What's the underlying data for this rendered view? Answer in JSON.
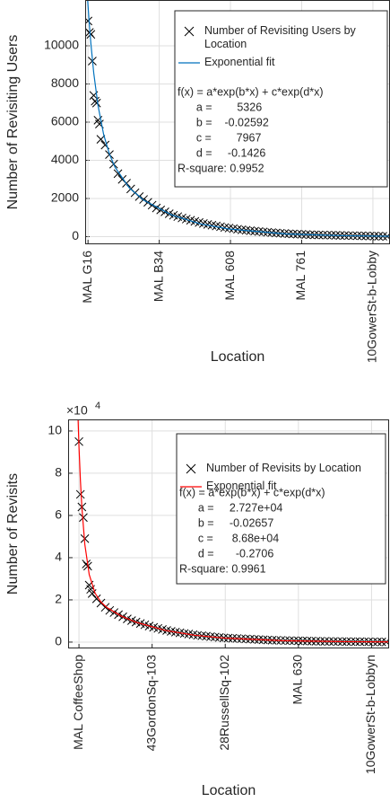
{
  "chart_data": [
    {
      "type": "scatter",
      "y_label": "Number of Revisiting Users",
      "x_label": "Location",
      "grid": true,
      "xlim": [
        -1,
        213
      ],
      "ylim": [
        -400,
        12400
      ],
      "xticks": [
        {
          "value": 1,
          "label": "MAL G16"
        },
        {
          "value": 51,
          "label": "MAL B34"
        },
        {
          "value": 101,
          "label": "MAL 608"
        },
        {
          "value": 151,
          "label": "MAL 761"
        },
        {
          "value": 201,
          "label": "10GowerSt-b-Lobby"
        }
      ],
      "yticks": [
        0,
        2000,
        4000,
        6000,
        8000,
        10000
      ],
      "series": [
        {
          "name": "Number of Revisiting Users by\nLocation",
          "style": "marker",
          "color": "#000000",
          "x": [
            1,
            2,
            3,
            4,
            5,
            6,
            7,
            8,
            9,
            10,
            13,
            16,
            19,
            22,
            25,
            28,
            31,
            34,
            37,
            40,
            43,
            46,
            49,
            52,
            55,
            58,
            61,
            64,
            67,
            70,
            73,
            76,
            79,
            82,
            85,
            88,
            91,
            94,
            97,
            100,
            103,
            106,
            109,
            112,
            115,
            118,
            121,
            124,
            127,
            130,
            133,
            136,
            139,
            142,
            145,
            148,
            151,
            154,
            157,
            160,
            163,
            166,
            169,
            172,
            175,
            178,
            181,
            184,
            187,
            190,
            193,
            196,
            199,
            202,
            205,
            208,
            211
          ],
          "values": [
            11300,
            10700,
            10600,
            9200,
            7400,
            7100,
            7000,
            6100,
            5900,
            5100,
            4800,
            4300,
            3800,
            3300,
            3000,
            2800,
            2500,
            2300,
            2100,
            1950,
            1800,
            1650,
            1500,
            1400,
            1300,
            1200,
            1120,
            1050,
            980,
            920,
            860,
            800,
            740,
            690,
            640,
            600,
            560,
            520,
            480,
            450,
            420,
            390,
            360,
            335,
            310,
            290,
            270,
            250,
            230,
            210,
            195,
            180,
            165,
            150,
            140,
            130,
            120,
            110,
            100,
            95,
            90,
            85,
            80,
            75,
            70,
            65,
            60,
            55,
            50,
            45,
            40,
            36,
            32,
            28,
            24,
            20,
            15
          ]
        },
        {
          "name": "Exponential fit",
          "style": "line",
          "color": "#0072bd",
          "x": [
            0,
            1,
            2,
            3,
            5,
            8,
            12,
            16,
            20,
            30,
            40,
            60,
            80,
            100,
            140,
            180,
            213
          ],
          "values": [
            13293,
            12098,
            11047,
            10122,
            8585,
            6875,
            5342,
            4332,
            3631,
            2557,
            1915,
            1125,
            669,
            399,
            141,
            50,
            21
          ]
        }
      ],
      "annotation": [
        "f(x) = a*exp(b*x) + c*exp(d*x)",
        "      a =        5326",
        "      b =    -0.02592",
        "      c =        7967",
        "      d =     -0.1426",
        "R-square: 0.9952"
      ]
    },
    {
      "type": "scatter",
      "y_label": "Number of Revisits",
      "x_label": "Location",
      "grid": true,
      "y_multiplier": {
        "base": "×10",
        "exponent": "4"
      },
      "xlim": [
        -6.4,
        213
      ],
      "ylim": [
        -0.3,
        10.55
      ],
      "xticks": [
        {
          "value": 1,
          "label": "MAL CoffeeShop"
        },
        {
          "value": 51,
          "label": "43GordonSq-103"
        },
        {
          "value": 101,
          "label": "28RussellSq-102"
        },
        {
          "value": 151,
          "label": "MAL 630"
        },
        {
          "value": 201,
          "label": "10GowerSt-b-Lobbyn"
        }
      ],
      "yticks": [
        0,
        2,
        4,
        6,
        8,
        10
      ],
      "series": [
        {
          "name": "Number of Revisits by Location",
          "style": "marker",
          "color": "#000000",
          "x": [
            1,
            2,
            3,
            4,
            5,
            6,
            7,
            8,
            9,
            10,
            13,
            16,
            19,
            22,
            25,
            28,
            31,
            34,
            37,
            40,
            43,
            46,
            49,
            52,
            55,
            58,
            61,
            64,
            67,
            70,
            73,
            76,
            79,
            82,
            85,
            88,
            91,
            94,
            97,
            100,
            103,
            106,
            109,
            112,
            115,
            118,
            121,
            124,
            127,
            130,
            133,
            136,
            139,
            142,
            145,
            148,
            151,
            154,
            157,
            160,
            163,
            166,
            169,
            172,
            175,
            178,
            181,
            184,
            187,
            190,
            193,
            196,
            199,
            202,
            205,
            208,
            211
          ],
          "values": [
            9.5,
            7.0,
            6.4,
            5.9,
            4.9,
            3.7,
            3.6,
            2.7,
            2.5,
            2.3,
            2.05,
            1.85,
            1.65,
            1.5,
            1.4,
            1.3,
            1.2,
            1.1,
            1.02,
            0.95,
            0.88,
            0.82,
            0.76,
            0.7,
            0.65,
            0.6,
            0.55,
            0.51,
            0.47,
            0.44,
            0.41,
            0.38,
            0.35,
            0.32,
            0.3,
            0.28,
            0.26,
            0.24,
            0.22,
            0.2,
            0.19,
            0.18,
            0.17,
            0.16,
            0.15,
            0.14,
            0.13,
            0.12,
            0.11,
            0.1,
            0.09,
            0.085,
            0.08,
            0.075,
            0.07,
            0.065,
            0.06,
            0.055,
            0.05,
            0.045,
            0.04,
            0.038,
            0.035,
            0.032,
            0.03,
            0.028,
            0.026,
            0.024,
            0.022,
            0.02,
            0.018,
            0.016,
            0.014,
            0.012,
            0.01,
            0.008,
            0.006
          ]
        },
        {
          "name": "Exponential fit",
          "style": "line",
          "color": "#ff0000",
          "x": [
            0,
            1,
            2,
            3,
            5,
            8,
            12,
            16,
            20,
            30,
            40,
            60,
            80,
            100,
            140,
            180,
            213
          ],
          "values": [
            11.407,
            9.277,
            7.638,
            6.372,
            4.632,
            3.201,
            2.321,
            1.897,
            1.642,
            1.229,
            0.942,
            0.554,
            0.325,
            0.191,
            0.066,
            0.023,
            0.0095
          ]
        }
      ],
      "annotation": [
        "f(x) = a*exp(b*x) + c*exp(d*x)",
        "      a =     2.727e+04",
        "      b =     -0.02657",
        "      c =      8.68e+04",
        "      d =       -0.2706",
        "R-square: 0.9961"
      ]
    }
  ]
}
